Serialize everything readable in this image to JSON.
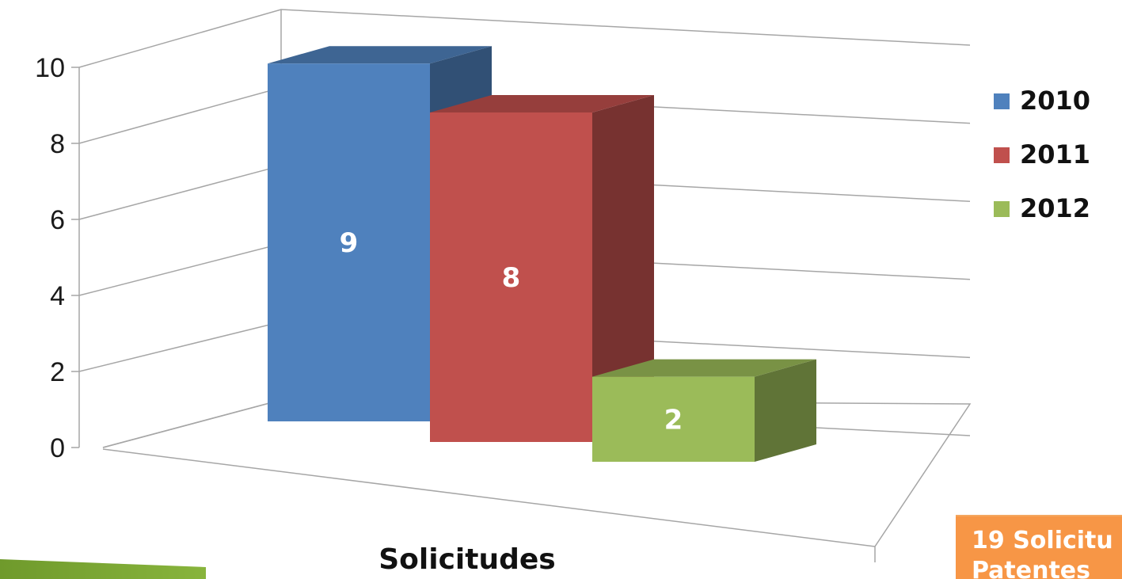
{
  "chart_data": {
    "type": "bar",
    "categories": [
      "Solicitudes"
    ],
    "series": [
      {
        "name": "2010",
        "values": [
          9
        ],
        "color": "#4f81bd"
      },
      {
        "name": "2011",
        "values": [
          8
        ],
        "color": "#c0504d"
      },
      {
        "name": "2012",
        "values": [
          2
        ],
        "color": "#9bbb59"
      }
    ],
    "data_labels": [
      "9",
      "8",
      "2"
    ],
    "y_ticks": [
      "0",
      "2",
      "4",
      "6",
      "8",
      "10"
    ],
    "xlabel": "Solicitudes",
    "ylim": [
      0,
      10
    ],
    "grid": true,
    "style": "3d",
    "legend_position": "right"
  },
  "callout": {
    "line1": "19 Solicitu",
    "line2": "Patentes"
  }
}
